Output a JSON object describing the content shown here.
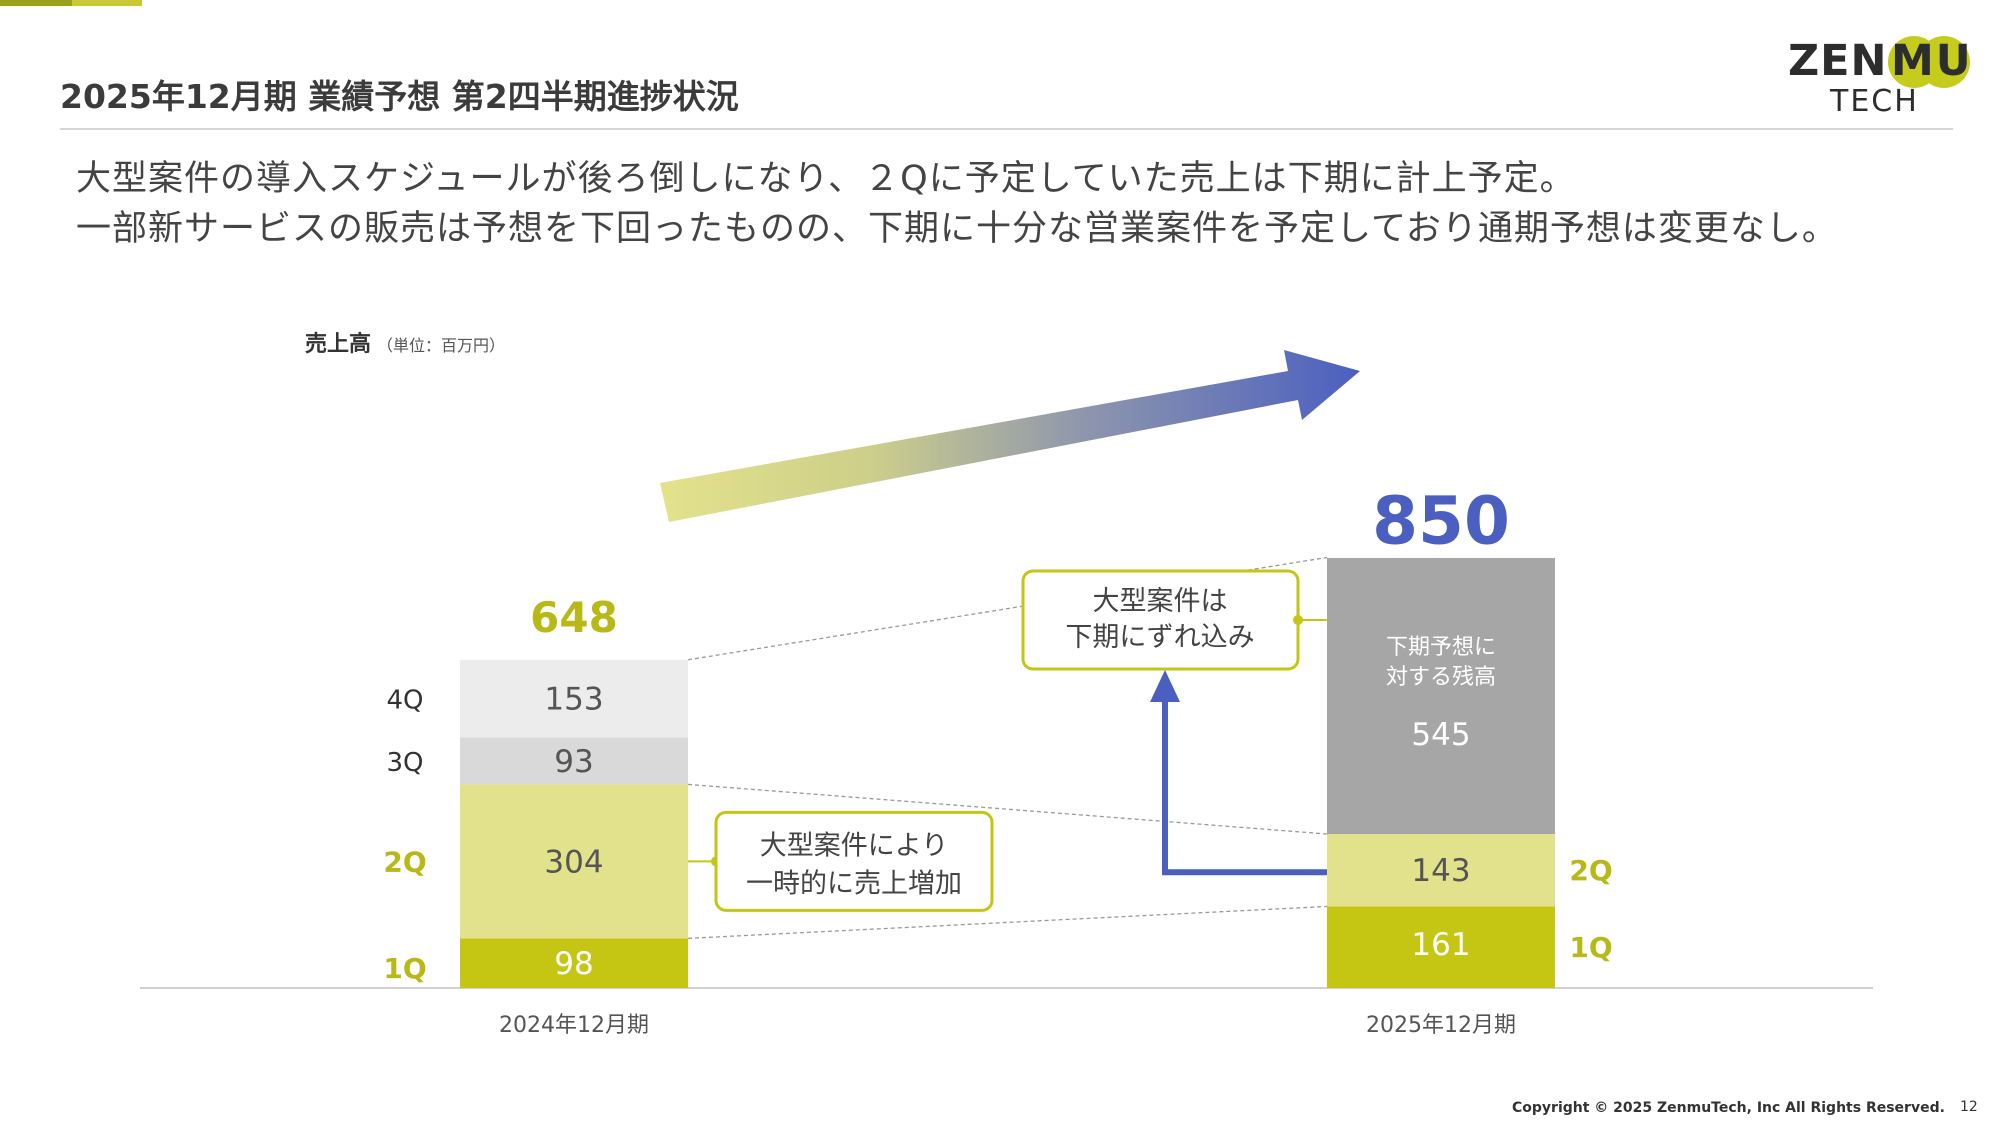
{
  "slide": {
    "title": "2025年12月期 業績予想 第2四半期進捗状況",
    "lead_line1": "大型案件の導入スケジュールが後ろ倒しになり、２Qに予定していた売上は下期に計上予定。",
    "lead_line2": "一部新サービスの販売は予想を下回ったものの、下期に十分な営業案件を予定しており通期予想は変更なし。",
    "unit_title": "売上高",
    "unit_note": "（単位：百万円）",
    "copyright": "Copyright © 2025 ZenmuTech, Inc All Rights Reserved.",
    "page_number": "12"
  },
  "logo": {
    "text1": "ZEN",
    "text2": "MU",
    "text3": "TECH"
  },
  "colors": {
    "q1": "#c5c514",
    "q2": "#e3e28c",
    "q3": "#d9d9d9",
    "q4": "#ececec",
    "remain": "#a6a6a6",
    "accent_label": "#b8b817",
    "forecast_blue": "#4b5fc0",
    "arrow_start": "#e3e28c"
  },
  "chart_data": {
    "type": "bar",
    "stacked": true,
    "categories": [
      "2024年12月期",
      "2025年12月期"
    ],
    "series": [
      {
        "name": "1Q",
        "values": [
          98,
          161
        ]
      },
      {
        "name": "2Q",
        "values": [
          304,
          143
        ]
      },
      {
        "name": "3Q",
        "values": [
          93,
          null
        ]
      },
      {
        "name": "4Q",
        "values": [
          153,
          null
        ]
      },
      {
        "name": "下期予想に対する残高",
        "values": [
          null,
          545
        ]
      }
    ],
    "totals": [
      648,
      850
    ],
    "total_labels": [
      "648",
      "850"
    ],
    "remain_label_line1": "下期予想に",
    "remain_label_line2": "対する残高",
    "ylim": [
      0,
      850
    ],
    "grid": false,
    "annotations": {
      "callout1_line1": "大型案件により",
      "callout1_line2": "一時的に売上増加",
      "callout2_line1": "大型案件は",
      "callout2_line2": "下期にずれ込み"
    }
  }
}
